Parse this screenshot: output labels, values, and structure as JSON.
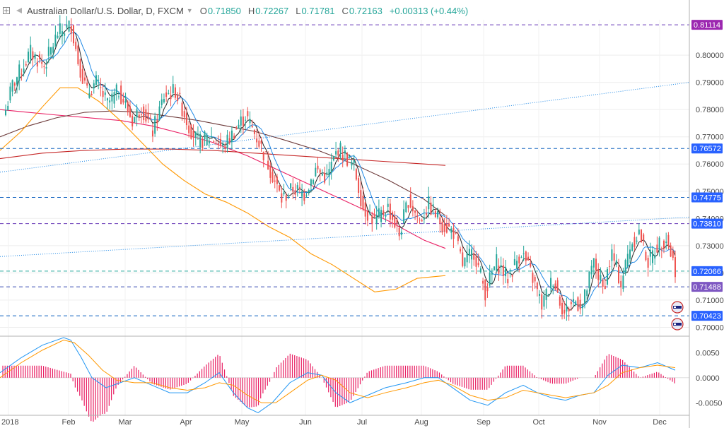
{
  "header": {
    "symbol": "Australian Dollar/U.S. Dollar, D, FXCM",
    "open_label": "O",
    "open": "0.71850",
    "high_label": "H",
    "high": "0.72267",
    "low_label": "L",
    "low": "0.71781",
    "close_label": "C",
    "close": "0.72163",
    "change": "+0.00313 (+0.44%)"
  },
  "chart_data": {
    "type": "candlestick",
    "instrument": "AUD/USD",
    "timeframe": "D",
    "source": "FXCM",
    "ylim": [
      0.697,
      0.813
    ],
    "y_ticks": [
      "0.80000",
      "0.79000",
      "0.78000",
      "0.77000",
      "0.76000",
      "0.75000",
      "0.74000",
      "0.73000",
      "0.72000",
      "0.71000",
      "0.70000"
    ],
    "x_ticks": [
      "2018",
      "Feb",
      "Mar",
      "Apr",
      "May",
      "Jun",
      "Jul",
      "Aug",
      "Sep",
      "Oct",
      "Nov",
      "Dec"
    ],
    "close_path": [
      [
        0.78,
        3
      ],
      [
        0.789,
        8
      ],
      [
        0.801,
        6
      ],
      [
        0.796,
        6
      ],
      [
        0.808,
        6
      ],
      [
        0.811,
        3
      ],
      [
        0.798,
        4
      ],
      [
        0.786,
        4
      ],
      [
        0.79,
        5
      ],
      [
        0.782,
        5
      ],
      [
        0.787,
        6
      ],
      [
        0.776,
        4
      ],
      [
        0.781,
        5
      ],
      [
        0.772,
        5
      ],
      [
        0.785,
        5
      ],
      [
        0.787,
        6
      ],
      [
        0.774,
        4
      ],
      [
        0.768,
        6
      ],
      [
        0.77,
        5
      ],
      [
        0.766,
        5
      ],
      [
        0.772,
        5
      ],
      [
        0.778,
        6
      ],
      [
        0.768,
        5
      ],
      [
        0.758,
        5
      ],
      [
        0.747,
        5
      ],
      [
        0.751,
        5
      ],
      [
        0.749,
        5
      ],
      [
        0.758,
        5
      ],
      [
        0.755,
        5
      ],
      [
        0.766,
        7
      ],
      [
        0.759,
        4
      ],
      [
        0.744,
        5
      ],
      [
        0.739,
        6
      ],
      [
        0.744,
        5
      ],
      [
        0.734,
        4
      ],
      [
        0.747,
        5
      ],
      [
        0.739,
        4
      ],
      [
        0.745,
        6
      ],
      [
        0.738,
        5
      ],
      [
        0.735,
        4
      ],
      [
        0.723,
        5
      ],
      [
        0.728,
        5
      ],
      [
        0.713,
        5
      ],
      [
        0.724,
        5
      ],
      [
        0.718,
        6
      ],
      [
        0.728,
        5
      ],
      [
        0.718,
        4
      ],
      [
        0.708,
        5
      ],
      [
        0.718,
        5
      ],
      [
        0.705,
        4
      ],
      [
        0.71,
        4
      ],
      [
        0.708,
        5
      ],
      [
        0.724,
        4
      ],
      [
        0.714,
        4
      ],
      [
        0.727,
        4
      ],
      [
        0.716,
        4
      ],
      [
        0.73,
        4
      ],
      [
        0.735,
        4
      ],
      [
        0.724,
        4
      ],
      [
        0.73,
        4
      ],
      [
        0.733,
        4
      ],
      [
        0.7216,
        4
      ]
    ],
    "overlays": [
      {
        "color": "#e91e63",
        "points": [
          [
            0.78,
            0
          ],
          [
            0.779,
            40
          ],
          [
            0.778,
            80
          ],
          [
            0.777,
            125
          ],
          [
            0.776,
            170
          ],
          [
            0.774,
            215
          ],
          [
            0.771,
            260
          ],
          [
            0.768,
            300
          ],
          [
            0.763,
            350
          ],
          [
            0.757,
            400
          ],
          [
            0.751,
            450
          ],
          [
            0.745,
            500
          ],
          [
            0.739,
            550
          ],
          [
            0.732,
            600
          ],
          [
            0.729,
            630
          ]
        ]
      },
      {
        "color": "#6d3a3a",
        "points": [
          [
            0.77,
            0
          ],
          [
            0.774,
            40
          ],
          [
            0.777,
            80
          ],
          [
            0.779,
            120
          ],
          [
            0.7795,
            160
          ],
          [
            0.779,
            200
          ],
          [
            0.7775,
            240
          ],
          [
            0.776,
            280
          ],
          [
            0.774,
            320
          ],
          [
            0.772,
            360
          ],
          [
            0.769,
            400
          ],
          [
            0.765,
            450
          ],
          [
            0.76,
            500
          ],
          [
            0.754,
            550
          ],
          [
            0.747,
            600
          ],
          [
            0.741,
            630
          ]
        ]
      },
      {
        "color": "#c62828",
        "points": [
          [
            0.762,
            0
          ],
          [
            0.764,
            60
          ],
          [
            0.765,
            120
          ],
          [
            0.7655,
            180
          ],
          [
            0.7655,
            240
          ],
          [
            0.765,
            300
          ],
          [
            0.764,
            360
          ],
          [
            0.763,
            420
          ],
          [
            0.762,
            480
          ],
          [
            0.761,
            540
          ],
          [
            0.76,
            600
          ],
          [
            0.7595,
            630
          ]
        ]
      },
      {
        "color": "#ff9800",
        "points": [
          [
            0.765,
            0
          ],
          [
            0.772,
            30
          ],
          [
            0.781,
            60
          ],
          [
            0.788,
            85
          ],
          [
            0.788,
            110
          ],
          [
            0.783,
            140
          ],
          [
            0.776,
            170
          ],
          [
            0.768,
            200
          ],
          [
            0.76,
            230
          ],
          [
            0.754,
            260
          ],
          [
            0.749,
            290
          ],
          [
            0.746,
            320
          ],
          [
            0.742,
            350
          ],
          [
            0.737,
            380
          ],
          [
            0.733,
            410
          ],
          [
            0.727,
            440
          ],
          [
            0.723,
            470
          ],
          [
            0.718,
            500
          ],
          [
            0.713,
            530
          ],
          [
            0.714,
            560
          ],
          [
            0.718,
            590
          ],
          [
            0.719,
            630
          ]
        ]
      }
    ],
    "trend_lines": [
      {
        "color": "#1e88e5",
        "from": [
          0.757,
          0
        ],
        "to": [
          0.79,
          975
        ]
      },
      {
        "color": "#1e88e5",
        "from": [
          0.726,
          0
        ],
        "to": [
          0.7405,
          975
        ]
      }
    ],
    "levels": [
      {
        "value": 0.81114,
        "label": "0.81114",
        "color": "#9c27b0",
        "line_color": "#673ab7",
        "dash": true
      },
      {
        "value": 0.76572,
        "label": "0.76572",
        "color": "#2962ff",
        "line_color": "#1565c0",
        "dash": true
      },
      {
        "value": 0.74775,
        "label": "0.74775",
        "color": "#2962ff",
        "line_color": "#1565c0",
        "dash": true
      },
      {
        "value": 0.7381,
        "label": "0.73810",
        "color": "#2962ff",
        "line_color": "#673ab7",
        "dash": true
      },
      {
        "value": 0.72066,
        "label": "0.72066",
        "color": "#2962ff",
        "line_color": "#26a69a",
        "dash": true
      },
      {
        "value": 0.71488,
        "label": "0.71488",
        "color": "#7e57c2",
        "line_color": "#3f51b5",
        "dash": true
      },
      {
        "value": 0.70423,
        "label": "0.70423",
        "color": "#2962ff",
        "line_color": "#1565c0",
        "dash": true
      }
    ],
    "macd": {
      "ylim": [
        -0.0075,
        0.008
      ],
      "y_ticks": [
        "0.0050",
        "0.0000",
        "-0.0050"
      ],
      "hist_color": "#e91e63",
      "macd_color": "#2196f3",
      "signal_color": "#ff9800",
      "macd_line": [
        [
          0.001,
          0
        ],
        [
          0.004,
          30
        ],
        [
          0.0065,
          60
        ],
        [
          0.008,
          90
        ],
        [
          0.0075,
          100
        ],
        [
          0.004,
          115
        ],
        [
          0.0,
          130
        ],
        [
          -0.002,
          150
        ],
        [
          -0.001,
          170
        ],
        [
          0.0,
          190
        ],
        [
          -0.0015,
          215
        ],
        [
          -0.003,
          240
        ],
        [
          -0.003,
          265
        ],
        [
          -0.001,
          290
        ],
        [
          0.001,
          310
        ],
        [
          -0.003,
          330
        ],
        [
          -0.006,
          350
        ],
        [
          -0.007,
          365
        ],
        [
          -0.005,
          385
        ],
        [
          -0.001,
          410
        ],
        [
          0.001,
          435
        ],
        [
          0.0005,
          455
        ],
        [
          -0.003,
          475
        ],
        [
          -0.005,
          495
        ],
        [
          -0.0035,
          520
        ],
        [
          -0.002,
          545
        ],
        [
          -0.001,
          575
        ],
        [
          0.0,
          600
        ],
        [
          0.0,
          620
        ],
        [
          -0.002,
          640
        ],
        [
          -0.0045,
          665
        ],
        [
          -0.0055,
          690
        ],
        [
          -0.003,
          715
        ],
        [
          -0.0015,
          740
        ],
        [
          -0.003,
          760
        ],
        [
          -0.004,
          780
        ],
        [
          -0.0045,
          800
        ],
        [
          -0.0035,
          820
        ],
        [
          -0.003,
          840
        ],
        [
          0.0005,
          860
        ],
        [
          0.0025,
          880
        ],
        [
          0.002,
          905
        ],
        [
          0.003,
          930
        ],
        [
          0.0015,
          955
        ]
      ],
      "signal_line": [
        [
          0.0,
          0
        ],
        [
          0.003,
          30
        ],
        [
          0.0055,
          60
        ],
        [
          0.0075,
          90
        ],
        [
          0.007,
          105
        ],
        [
          0.0045,
          125
        ],
        [
          0.0015,
          145
        ],
        [
          -0.0005,
          165
        ],
        [
          -0.001,
          190
        ],
        [
          -0.001,
          215
        ],
        [
          -0.002,
          240
        ],
        [
          -0.0025,
          265
        ],
        [
          -0.002,
          290
        ],
        [
          -0.001,
          310
        ],
        [
          -0.0015,
          330
        ],
        [
          -0.0035,
          350
        ],
        [
          -0.005,
          370
        ],
        [
          -0.005,
          390
        ],
        [
          -0.003,
          410
        ],
        [
          -0.0005,
          435
        ],
        [
          0.0005,
          455
        ],
        [
          -0.0005,
          475
        ],
        [
          -0.003,
          495
        ],
        [
          -0.004,
          520
        ],
        [
          -0.003,
          545
        ],
        [
          -0.002,
          575
        ],
        [
          -0.001,
          600
        ],
        [
          -0.0005,
          620
        ],
        [
          -0.0015,
          640
        ],
        [
          -0.0035,
          665
        ],
        [
          -0.0045,
          690
        ],
        [
          -0.004,
          715
        ],
        [
          -0.0025,
          740
        ],
        [
          -0.003,
          760
        ],
        [
          -0.0035,
          780
        ],
        [
          -0.004,
          800
        ],
        [
          -0.0035,
          820
        ],
        [
          -0.003,
          840
        ],
        [
          -0.0015,
          860
        ],
        [
          0.001,
          880
        ],
        [
          0.002,
          905
        ],
        [
          0.0025,
          930
        ],
        [
          0.002,
          955
        ]
      ],
      "histogram_gain": 0.8
    }
  }
}
